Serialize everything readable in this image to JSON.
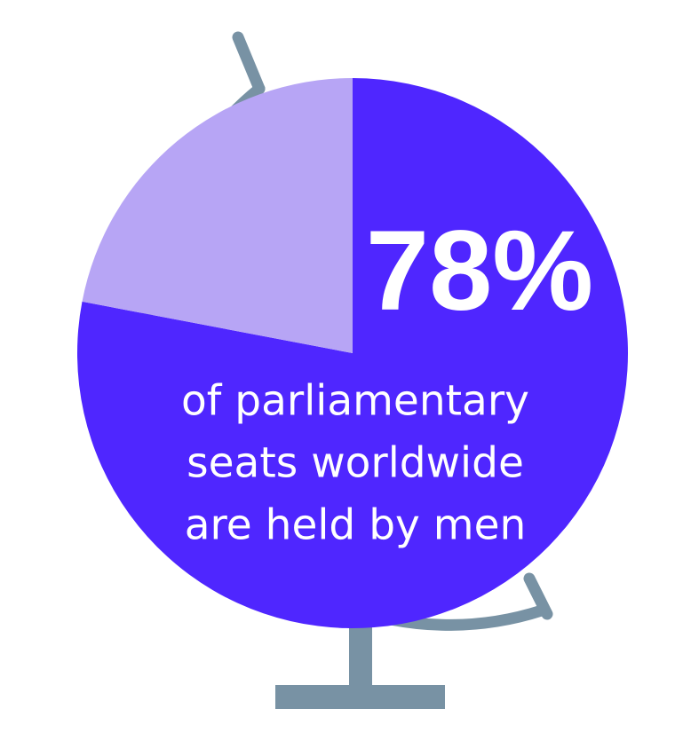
{
  "chart_data": {
    "type": "pie",
    "categories": [
      null,
      null
    ],
    "values": [
      78,
      22
    ],
    "value_labels": [
      "78%",
      null
    ],
    "colors": [
      "#4f26ff",
      "#b7a5f5"
    ],
    "annotation_lines": [
      "of parliamentary",
      "seats worldwide",
      "are held by men"
    ]
  }
}
